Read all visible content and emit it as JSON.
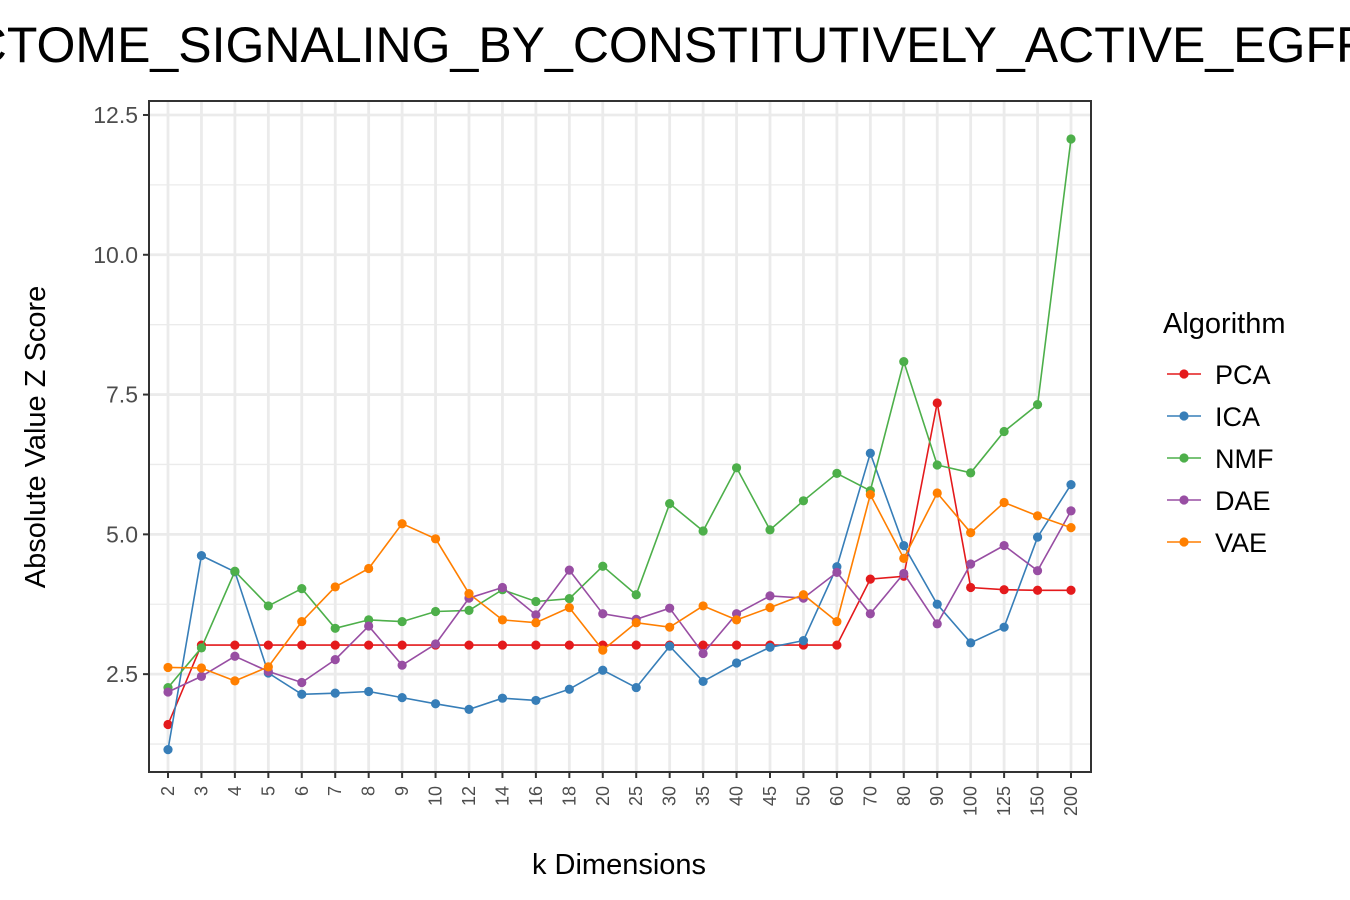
{
  "chart_data": {
    "type": "line",
    "title": "REACTOME_SIGNALING_BY_CONSTITUTIVELY_ACTIVE_EGFR",
    "xlabel": "k Dimensions",
    "ylabel": "Absolute Value Z Score",
    "categories": [
      "2",
      "3",
      "4",
      "5",
      "6",
      "7",
      "8",
      "9",
      "10",
      "12",
      "14",
      "16",
      "18",
      "20",
      "25",
      "30",
      "35",
      "40",
      "45",
      "50",
      "60",
      "70",
      "80",
      "90",
      "100",
      "125",
      "150",
      "200"
    ],
    "yticks": [
      2.5,
      5.0,
      7.5,
      10.0,
      12.5
    ],
    "ytick_labels": [
      "2.5",
      "5.0",
      "7.5",
      "10.0",
      "12.5"
    ],
    "ylim": [
      0.75,
      12.75
    ],
    "grid": true,
    "legend": {
      "title": "Algorithm",
      "position": "right"
    },
    "series": [
      {
        "name": "PCA",
        "color": "#e41a1c",
        "values": [
          1.6,
          3.02,
          3.02,
          3.02,
          3.02,
          3.02,
          3.02,
          3.02,
          3.02,
          3.02,
          3.02,
          3.02,
          3.02,
          3.02,
          3.02,
          3.02,
          3.02,
          3.02,
          3.02,
          3.02,
          3.02,
          4.2,
          4.25,
          7.35,
          4.05,
          4.01,
          4.0,
          4.0
        ]
      },
      {
        "name": "ICA",
        "color": "#377eb8",
        "values": [
          1.15,
          4.62,
          4.33,
          2.52,
          2.14,
          2.16,
          2.19,
          2.08,
          1.97,
          1.87,
          2.07,
          2.03,
          2.23,
          2.57,
          2.26,
          3.0,
          2.37,
          2.7,
          2.98,
          3.1,
          4.42,
          6.45,
          4.8,
          3.75,
          3.06,
          3.34,
          4.95,
          5.89
        ]
      },
      {
        "name": "NMF",
        "color": "#4daf4a",
        "values": [
          2.26,
          2.97,
          4.34,
          3.72,
          4.03,
          3.32,
          3.47,
          3.44,
          3.62,
          3.64,
          4.01,
          3.8,
          3.85,
          4.43,
          3.92,
          5.55,
          5.06,
          6.19,
          5.08,
          5.6,
          6.09,
          5.78,
          8.09,
          6.24,
          6.1,
          6.84,
          7.32,
          12.07
        ]
      },
      {
        "name": "DAE",
        "color": "#984ea3",
        "values": [
          2.18,
          2.46,
          2.82,
          2.55,
          2.35,
          2.76,
          3.36,
          2.66,
          3.04,
          3.86,
          4.05,
          3.56,
          4.36,
          3.58,
          3.48,
          3.68,
          2.87,
          3.58,
          3.9,
          3.86,
          4.32,
          3.58,
          4.3,
          3.4,
          4.47,
          4.8,
          4.35,
          5.42
        ]
      },
      {
        "name": "VAE",
        "color": "#ff7f00",
        "values": [
          2.62,
          2.61,
          2.38,
          2.63,
          3.44,
          4.06,
          4.39,
          5.19,
          4.92,
          3.94,
          3.47,
          3.42,
          3.69,
          2.93,
          3.42,
          3.34,
          3.72,
          3.47,
          3.69,
          3.92,
          3.44,
          5.71,
          4.57,
          5.74,
          5.03,
          5.57,
          5.33,
          5.12
        ]
      }
    ]
  }
}
